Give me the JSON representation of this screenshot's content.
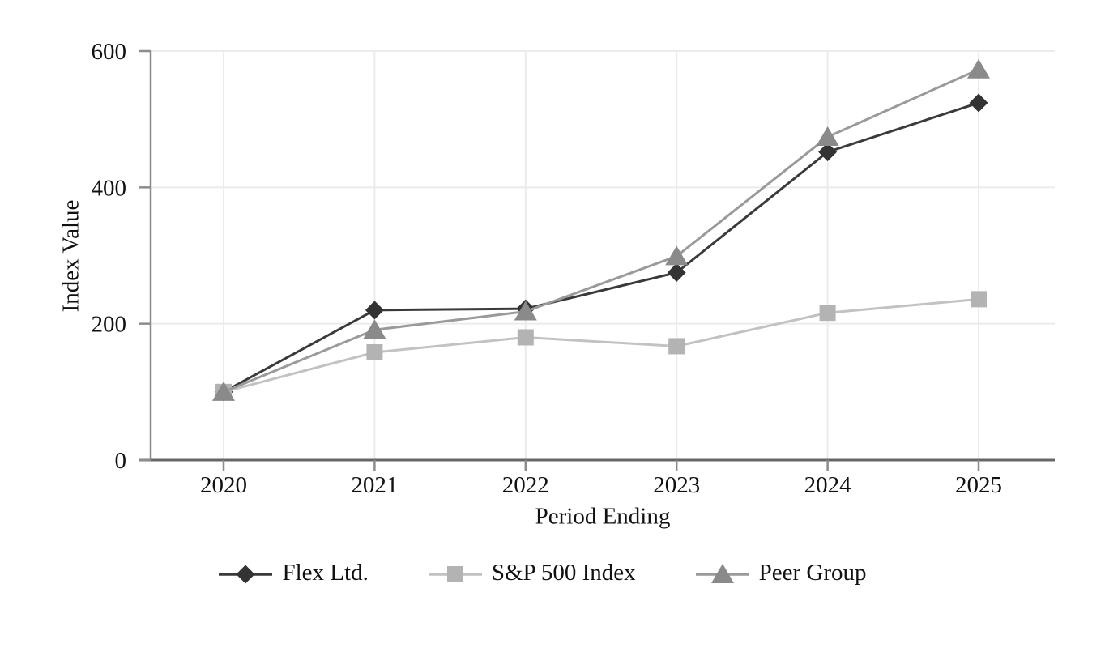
{
  "chart_data": {
    "type": "line",
    "title": "",
    "xlabel": "Period Ending",
    "ylabel": "Index Value",
    "x": [
      "2020",
      "2021",
      "2022",
      "2023",
      "2024",
      "2025"
    ],
    "series": [
      {
        "name": "Flex Ltd.",
        "marker": "diamond",
        "color": "#333333",
        "line_color": "#3a3a3a",
        "values": [
          100,
          220,
          222,
          275,
          452,
          524
        ]
      },
      {
        "name": "S&P 500 Index",
        "marker": "square",
        "color": "#b3b3b3",
        "line_color": "#c2c2c2",
        "values": [
          100,
          158,
          180,
          167,
          216,
          236
        ]
      },
      {
        "name": "Peer Group",
        "marker": "triangle",
        "color": "#8a8a8a",
        "line_color": "#9a9a9a",
        "values": [
          100,
          191,
          218,
          299,
          474,
          573
        ]
      }
    ],
    "ylim": [
      0,
      600
    ],
    "yticks": [
      0,
      200,
      400,
      600
    ],
    "grid": true,
    "legend_position": "bottom"
  },
  "colors": {
    "background": "#ffffff",
    "gridline": "#ebebeb",
    "axis": "#8c8c8c",
    "baseline": "#666666",
    "text": "#111111"
  }
}
